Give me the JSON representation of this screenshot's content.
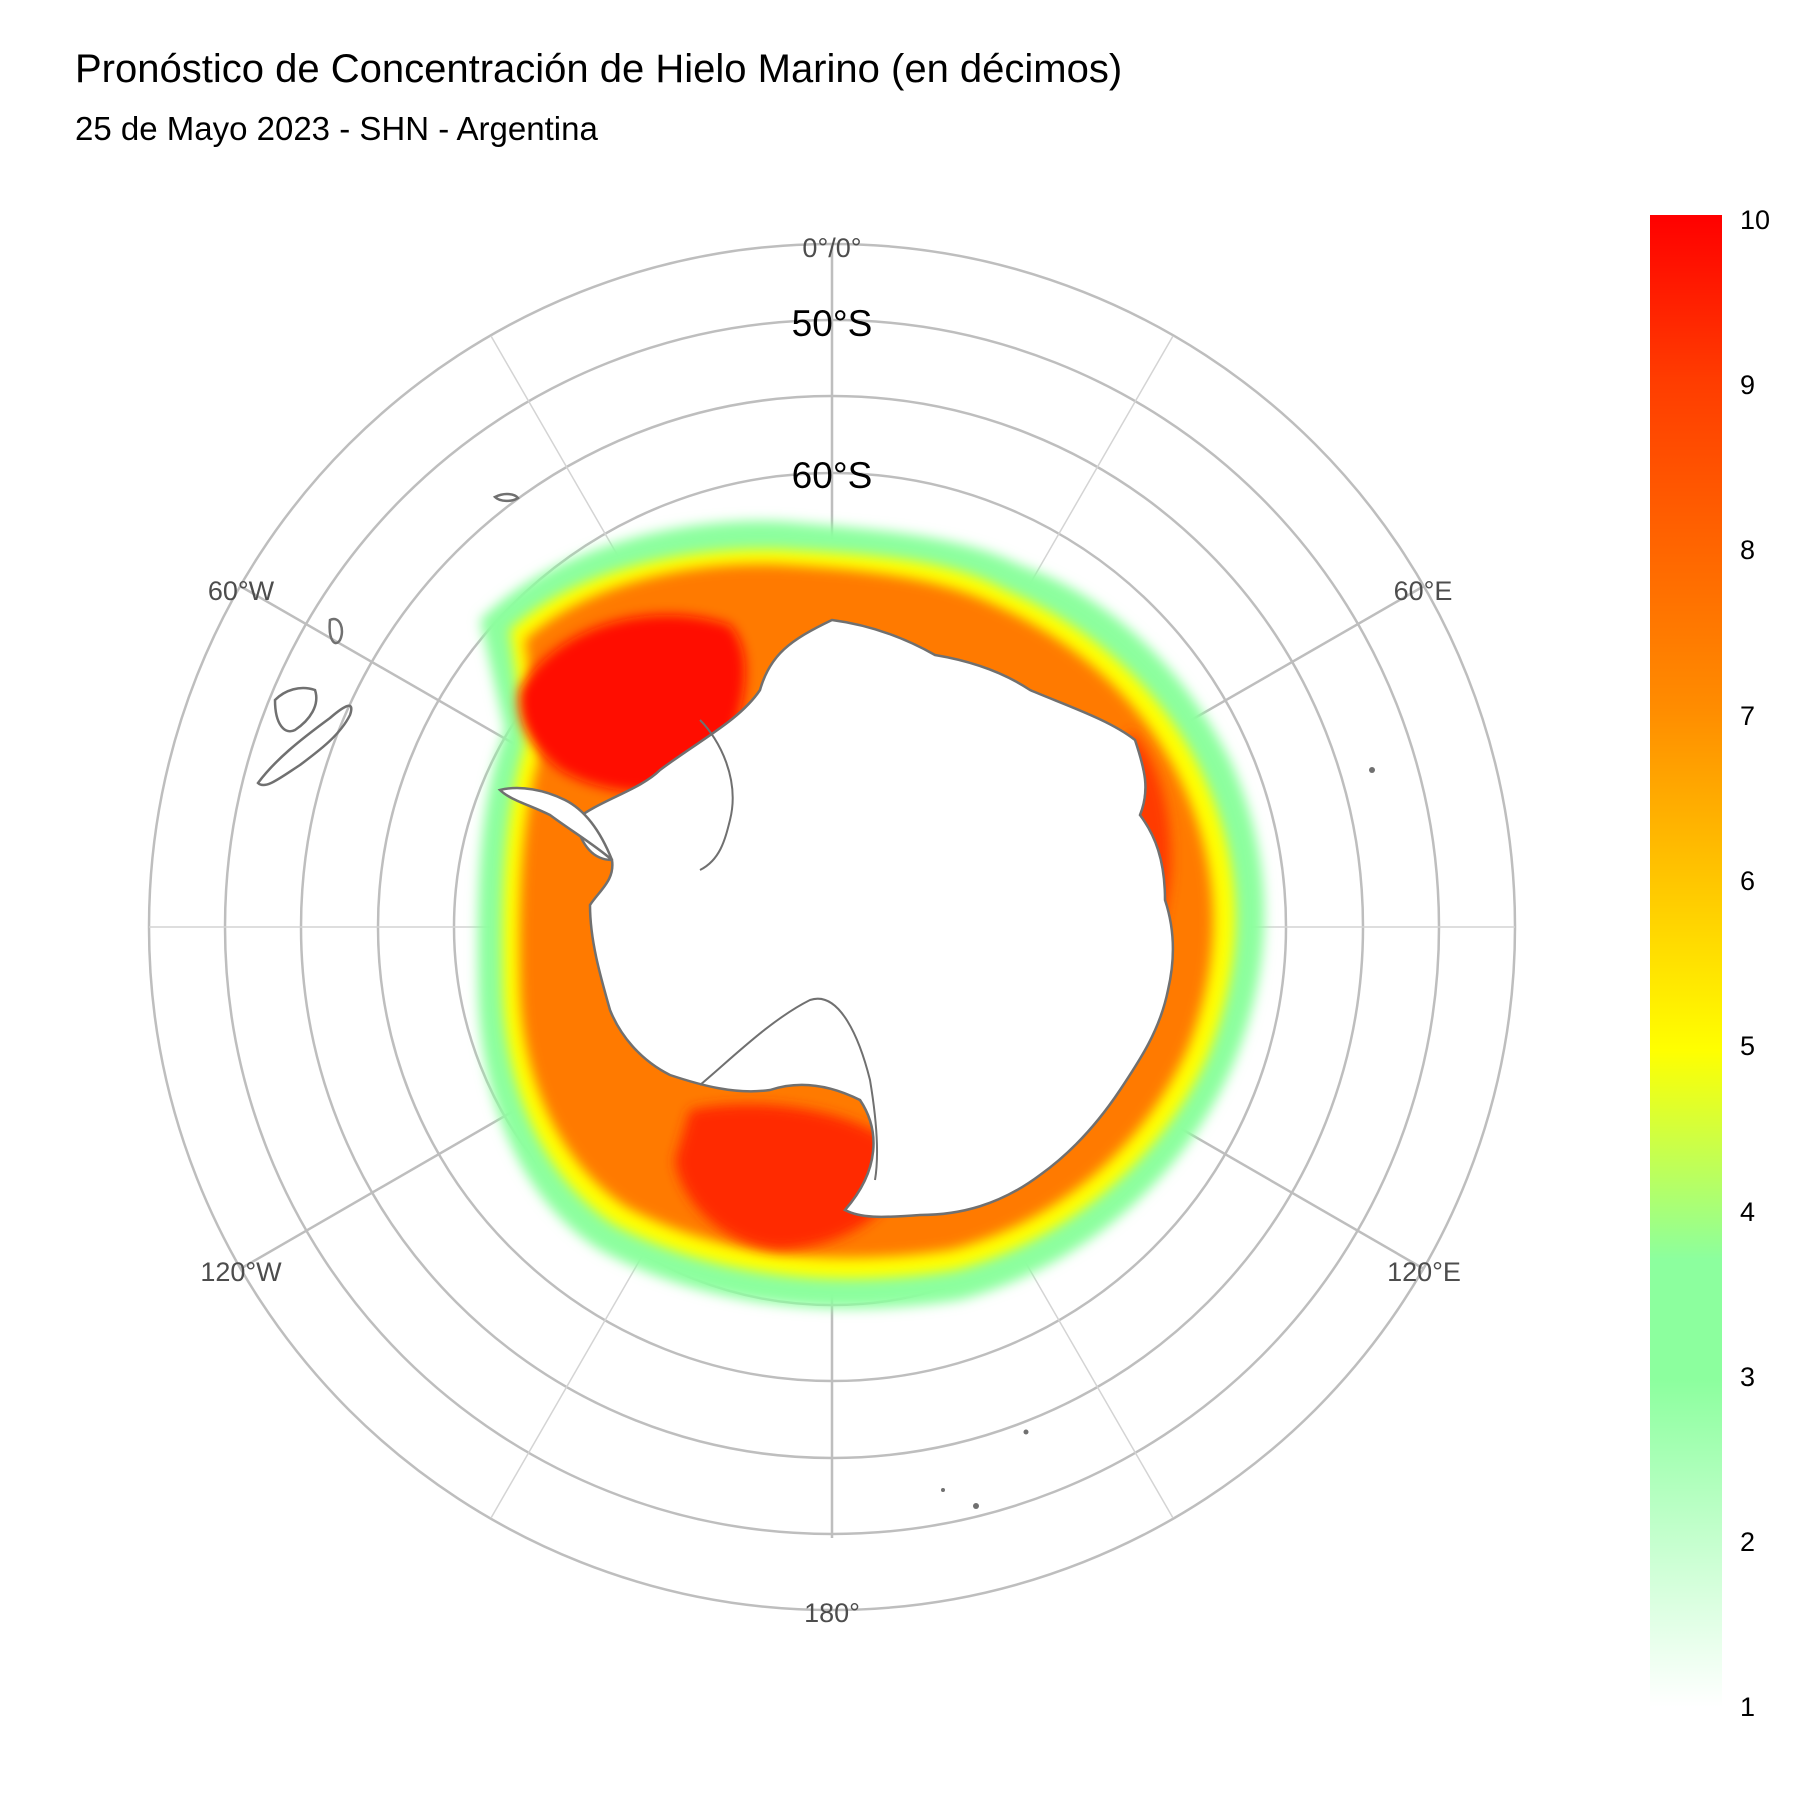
{
  "title": "Pronóstico de Concentración de Hielo Marino (en décimos)",
  "subtitle": "25 de Mayo 2023 - SHN - Argentina",
  "map": {
    "projection": "south polar stereographic",
    "center": "South Pole",
    "longitude_labels": [
      "0°/0°",
      "60°E",
      "120°E",
      "180°",
      "120°W",
      "60°W"
    ],
    "latitude_labels": [
      "50°S",
      "60°S"
    ],
    "grid_color": "#bebebe",
    "coastline_color": "#707070",
    "ice_edge_region": "sea ice surrounding Antarctica, highest concentration in the Weddell Sea and Ross Sea"
  },
  "legend": {
    "variable": "sea ice concentration (tenths)",
    "min": 1,
    "max": 10,
    "ticks": [
      "10",
      "9",
      "8",
      "7",
      "6",
      "5",
      "4",
      "3",
      "2",
      "1"
    ],
    "colors": {
      "v1": "#ffffff",
      "v3": "#8cff9e",
      "v5": "#ffff00",
      "v7": "#ff8c00",
      "v9": "#ff3c00",
      "v10": "#ff0000"
    }
  }
}
